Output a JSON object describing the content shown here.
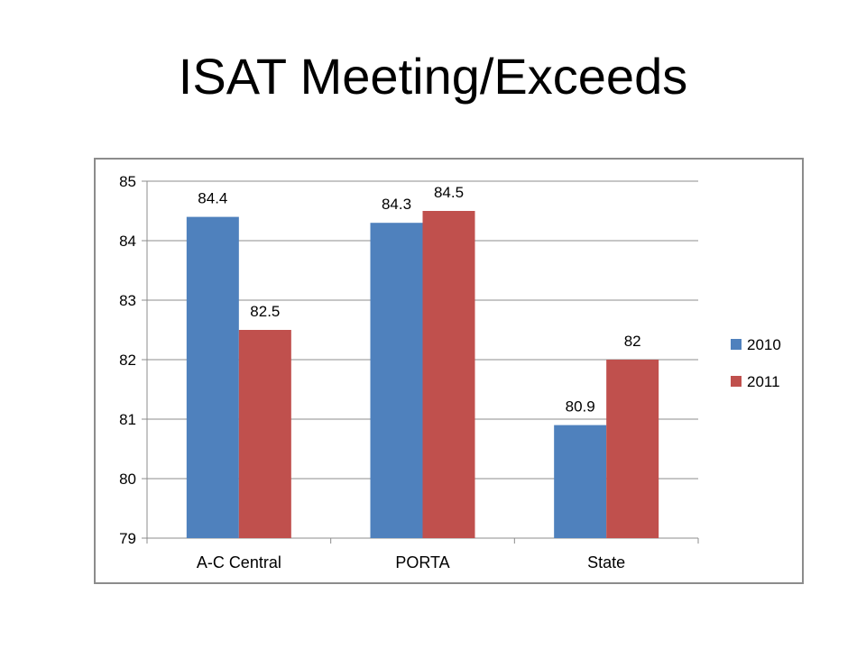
{
  "slide": {
    "title": "ISAT Meeting/Exceeds"
  },
  "chart_data": {
    "type": "bar",
    "title": "",
    "xlabel": "",
    "ylabel": "",
    "categories": [
      "A-C Central",
      "PORTA",
      "State"
    ],
    "series": [
      {
        "name": "2010",
        "values": [
          84.4,
          84.3,
          80.9
        ],
        "labels": [
          "84.4",
          "84.3",
          "80.9"
        ],
        "color": "#4f81bd"
      },
      {
        "name": "2011",
        "values": [
          82.5,
          84.5,
          82
        ],
        "labels": [
          "82.5",
          "84.5",
          "82"
        ],
        "color": "#c0504d"
      }
    ],
    "ylim": [
      79,
      85
    ],
    "yticks": [
      "79",
      "80",
      "81",
      "82",
      "83",
      "84",
      "85"
    ],
    "grid": true,
    "legend": "right"
  }
}
